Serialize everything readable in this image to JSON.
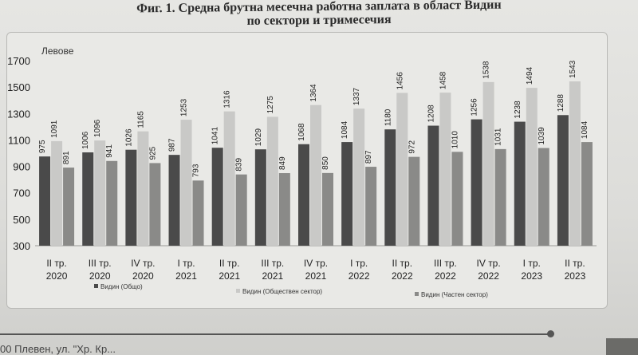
{
  "figure": {
    "title_line1": "Фиг. 1. Средна брутна месечна работна заплата в област Видин",
    "title_line2": "по сектори и тримесечия"
  },
  "footer": {
    "text": "00 Плевен, ул. \"Хр. Кр..."
  },
  "chart_data": {
    "type": "bar",
    "ylabel": "Левове",
    "ylim": [
      300,
      1700
    ],
    "yticks": [
      300,
      500,
      700,
      900,
      1100,
      1300,
      1500,
      1700
    ],
    "categories": [
      [
        "II тр.",
        "2020"
      ],
      [
        "III тр.",
        "2020"
      ],
      [
        "IV тр.",
        "2020"
      ],
      [
        "I тр.",
        "2021"
      ],
      [
        "II тр.",
        "2021"
      ],
      [
        "III тр.",
        "2021"
      ],
      [
        "IV тр.",
        "2021"
      ],
      [
        "I тр.",
        "2022"
      ],
      [
        "II тр.",
        "2022"
      ],
      [
        "III тр.",
        "2022"
      ],
      [
        "IV тр.",
        "2022"
      ],
      [
        "I тр.",
        "2023"
      ],
      [
        "II тр.",
        "2023"
      ]
    ],
    "series": [
      {
        "name": "Видин  (Общо)",
        "color": "#4a4a4a",
        "values": [
          975,
          1006,
          1026,
          987,
          1041,
          1029,
          1068,
          1084,
          1180,
          1208,
          1256,
          1238,
          1288
        ]
      },
      {
        "name": "Видин  (Обществен сектор)",
        "color": "#c9c9c7",
        "values": [
          1091,
          1096,
          1165,
          1253,
          1316,
          1275,
          1364,
          1337,
          1456,
          1458,
          1538,
          1494,
          1543
        ]
      },
      {
        "name": "Видин  (Частен сектор)",
        "color": "#8a8a88",
        "values": [
          891,
          941,
          925,
          793,
          839,
          849,
          850,
          897,
          972,
          1010,
          1031,
          1039,
          1084
        ]
      }
    ],
    "grid": false,
    "legend_position": "bottom"
  }
}
